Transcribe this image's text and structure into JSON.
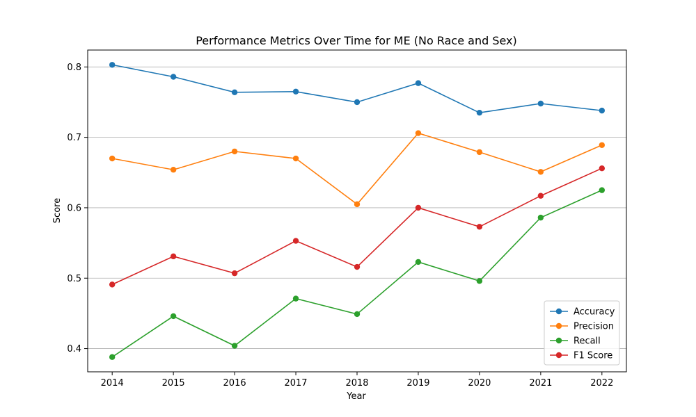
{
  "chart_data": {
    "type": "line",
    "title": "Performance Metrics Over Time for ME (No Race and Sex)",
    "xlabel": "Year",
    "ylabel": "Score",
    "x": [
      2014,
      2015,
      2016,
      2017,
      2018,
      2019,
      2020,
      2021,
      2022
    ],
    "x_tick_labels": [
      "2014",
      "2015",
      "2016",
      "2017",
      "2018",
      "2019",
      "2020",
      "2021",
      "2022"
    ],
    "y_ticks": [
      0.4,
      0.5,
      0.6,
      0.7,
      0.8
    ],
    "y_tick_labels": [
      "0.4",
      "0.5",
      "0.6",
      "0.7",
      "0.8"
    ],
    "xlim": [
      2013.6,
      2022.4
    ],
    "ylim": [
      0.367,
      0.824
    ],
    "grid": "horizontal",
    "legend_position": "lower-right",
    "series": [
      {
        "name": "Accuracy",
        "color": "#1f77b4",
        "values": [
          0.803,
          0.786,
          0.764,
          0.765,
          0.75,
          0.777,
          0.735,
          0.748,
          0.738
        ]
      },
      {
        "name": "Precision",
        "color": "#ff7f0e",
        "values": [
          0.67,
          0.654,
          0.68,
          0.67,
          0.605,
          0.706,
          0.679,
          0.651,
          0.689
        ]
      },
      {
        "name": "Recall",
        "color": "#2ca02c",
        "values": [
          0.388,
          0.446,
          0.404,
          0.471,
          0.449,
          0.523,
          0.496,
          0.586,
          0.625
        ]
      },
      {
        "name": "F1 Score",
        "color": "#d62728",
        "values": [
          0.491,
          0.531,
          0.507,
          0.553,
          0.516,
          0.6,
          0.573,
          0.617,
          0.656
        ]
      }
    ]
  }
}
